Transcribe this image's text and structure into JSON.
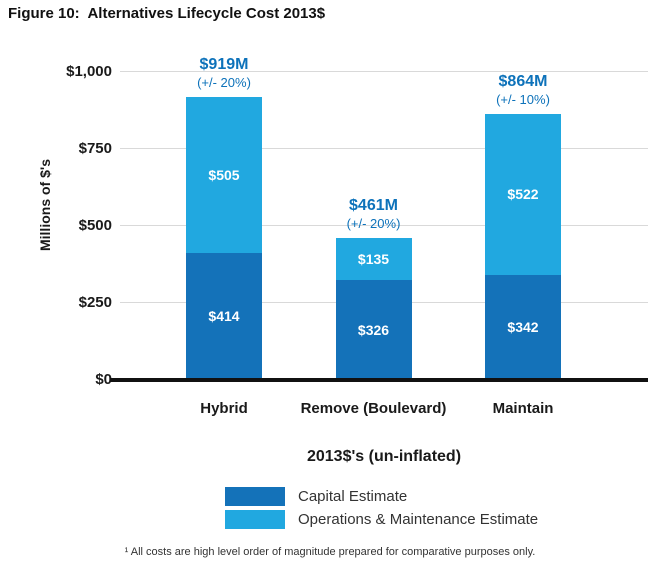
{
  "footnote": "¹ All costs are high level order of magnitude prepared for comparative purposes only.",
  "chart_data": {
    "type": "bar",
    "stacked": true,
    "title": "Figure 10:  Alternatives Lifecycle Cost 2013$",
    "xlabel": "2013$'s (un-inflated)",
    "ylabel": "Millions of $'s",
    "ylim": [
      0,
      1000
    ],
    "grid": "horizontal",
    "legend_position": "bottom",
    "categories": [
      "Hybrid",
      "Remove (Boulevard)",
      "Maintain"
    ],
    "series": [
      {
        "name": "Capital Estimate",
        "color": "#1472b9",
        "values": [
          414,
          326,
          342
        ],
        "labels": [
          "$414",
          "$326",
          "$342"
        ]
      },
      {
        "name": "Operations & Maintenance Estimate",
        "color": "#21a8e0",
        "values": [
          505,
          135,
          522
        ],
        "labels": [
          "$505",
          "$135",
          "$522"
        ]
      }
    ],
    "totals": [
      {
        "value": 919,
        "label": "$919M",
        "tolerance": "(+/- 20%)"
      },
      {
        "value": 461,
        "label": "$461M",
        "tolerance": "(+/- 20%)"
      },
      {
        "value": 864,
        "label": "$864M",
        "tolerance": "(+/- 10%)"
      }
    ],
    "yticks": [
      {
        "value": 0,
        "label": "$0"
      },
      {
        "value": 250,
        "label": "$250"
      },
      {
        "value": 500,
        "label": "$500"
      },
      {
        "value": 750,
        "label": "$750"
      },
      {
        "value": 1000,
        "label": "$1,000"
      }
    ],
    "annotation_color": "#0d72ba",
    "axis_color": "#111111",
    "gridline_color": "#d9d9d9"
  }
}
